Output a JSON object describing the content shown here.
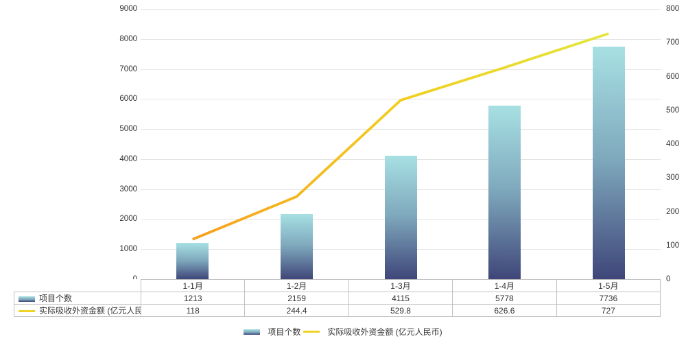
{
  "chart_data": {
    "type": "combo",
    "categories": [
      "1-1月",
      "1-2月",
      "1-3月",
      "1-4月",
      "1-5月"
    ],
    "series": [
      {
        "name": "项目个数",
        "type": "bar",
        "axis": "left",
        "values": [
          1213,
          2159,
          4115,
          5778,
          7736
        ],
        "gradient": [
          "#a7e0e3",
          "#7fa9bd",
          "#3f4679"
        ]
      },
      {
        "name": "实际吸收外资金额 (亿元人民币)",
        "type": "line",
        "axis": "right",
        "values": [
          118,
          244.4,
          529.8,
          626.6,
          727
        ],
        "gradient": [
          "#f7a01e",
          "#f1ce20",
          "#e3e63d"
        ],
        "swatch_color": "#f3d226"
      }
    ],
    "left_axis": {
      "min": 0,
      "max": 9000,
      "ticks": [
        0,
        1000,
        2000,
        3000,
        4000,
        5000,
        6000,
        7000,
        8000,
        9000
      ]
    },
    "right_axis": {
      "min": 0,
      "max": 800,
      "ticks": [
        0,
        100,
        200,
        300,
        400,
        500,
        600,
        700,
        800
      ]
    },
    "grid": true,
    "legend_position": "bottom",
    "show_data_table": true
  },
  "colors": {
    "gridline": "#e4e4e4",
    "table_border": "#c0c0c0",
    "background": "#ffffff",
    "text": "#333333"
  }
}
